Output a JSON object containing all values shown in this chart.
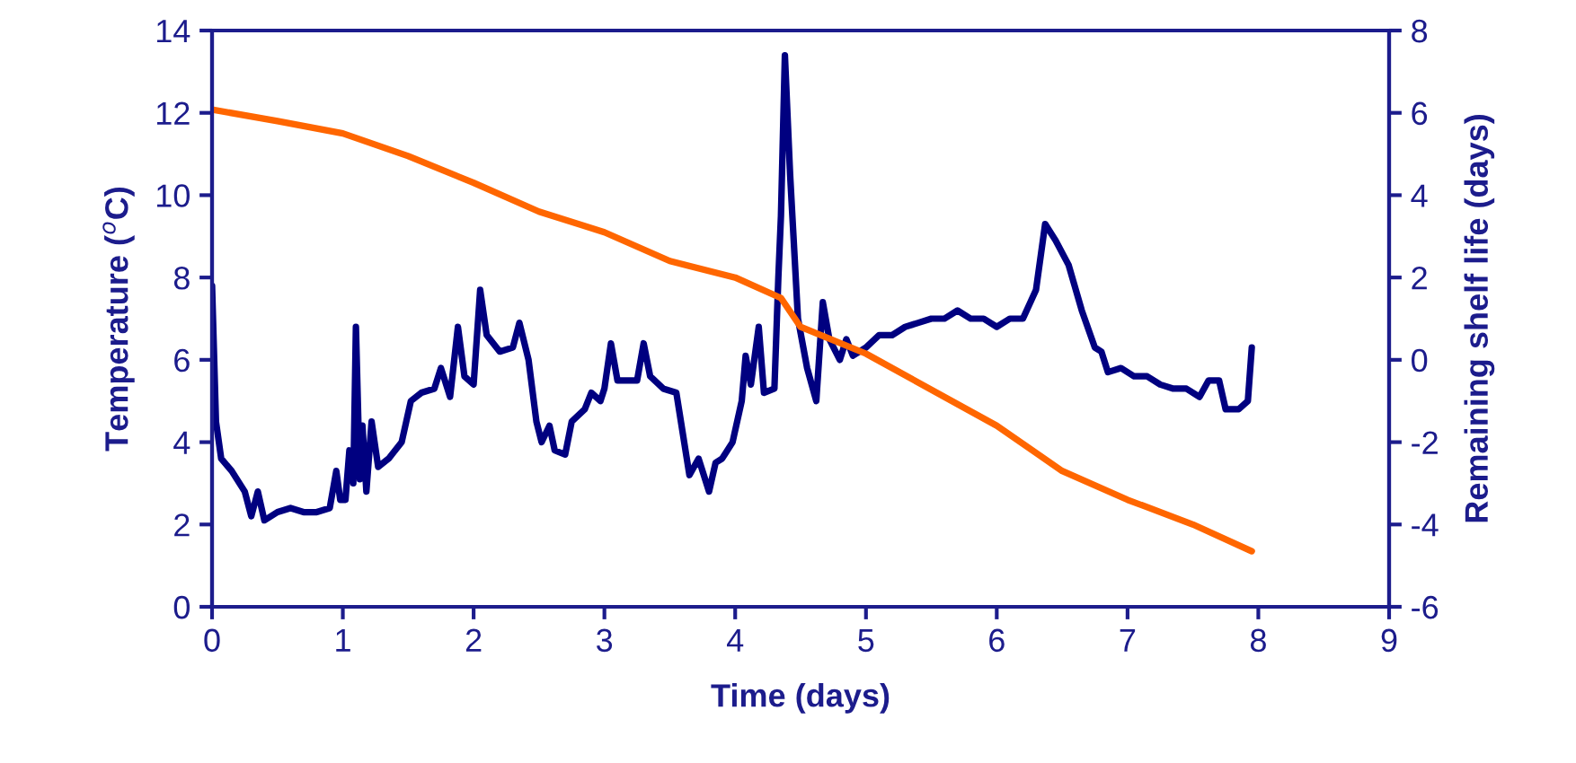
{
  "chart_data": {
    "type": "line",
    "xlabel": "Time (days)",
    "ylabel": "Temperature ($^{o}$C)",
    "y2label": "Remaining shelf life (days)",
    "xlim": [
      0,
      9
    ],
    "xticks": [
      0,
      1,
      2,
      3,
      4,
      5,
      6,
      7,
      8,
      9
    ],
    "ylim": [
      0,
      14
    ],
    "yticks": [
      0,
      2,
      4,
      6,
      8,
      10,
      12,
      14
    ],
    "y2lim": [
      -6,
      8
    ],
    "y2ticks": [
      -6,
      -4,
      -2,
      0,
      2,
      4,
      6,
      8
    ],
    "grid": false,
    "marker": "none",
    "line_style": "solid",
    "series": [
      {
        "color": "#000080",
        "x": [
          0,
          0.03,
          0.07,
          0.15,
          0.25,
          0.3,
          0.35,
          0.4,
          0.5,
          0.6,
          0.7,
          0.8,
          0.9,
          0.95,
          0.98,
          1.02,
          1.05,
          1.08,
          1.1,
          1.13,
          1.15,
          1.18,
          1.22,
          1.27,
          1.35,
          1.45,
          1.52,
          1.6,
          1.7,
          1.75,
          1.82,
          1.88,
          1.93,
          2.0,
          2.05,
          2.1,
          2.2,
          2.3,
          2.35,
          2.42,
          2.48,
          2.52,
          2.58,
          2.62,
          2.7,
          2.75,
          2.85,
          2.9,
          2.97,
          3.0,
          3.05,
          3.1,
          3.15,
          3.25,
          3.3,
          3.35,
          3.45,
          3.55,
          3.6,
          3.65,
          3.72,
          3.8,
          3.85,
          3.9,
          3.98,
          4.05,
          4.08,
          4.12,
          4.18,
          4.22,
          4.3,
          4.33,
          4.35,
          4.38,
          4.42,
          4.48,
          4.55,
          4.62,
          4.67,
          4.72,
          4.8,
          4.85,
          4.9,
          5.0,
          5.1,
          5.2,
          5.3,
          5.4,
          5.5,
          5.6,
          5.7,
          5.8,
          5.9,
          6.0,
          6.1,
          6.2,
          6.3,
          6.37,
          6.45,
          6.55,
          6.65,
          6.75,
          6.8,
          6.85,
          6.95,
          7.05,
          7.15,
          7.25,
          7.35,
          7.45,
          7.55,
          7.62,
          7.7,
          7.75,
          7.85,
          7.92,
          7.95
        ],
        "values": [
          7.8,
          4.5,
          3.6,
          3.3,
          2.8,
          2.2,
          2.8,
          2.1,
          2.3,
          2.4,
          2.3,
          2.3,
          2.4,
          3.3,
          2.6,
          2.6,
          3.8,
          3.0,
          6.8,
          3.1,
          4.4,
          2.8,
          4.5,
          3.4,
          3.6,
          4.0,
          5.0,
          5.2,
          5.3,
          5.8,
          5.1,
          6.8,
          5.6,
          5.4,
          7.7,
          6.6,
          6.2,
          6.3,
          6.9,
          6.0,
          4.5,
          4.0,
          4.4,
          3.8,
          3.7,
          4.5,
          4.8,
          5.2,
          5.0,
          5.3,
          6.4,
          5.5,
          5.5,
          5.5,
          6.4,
          5.6,
          5.3,
          5.2,
          4.2,
          3.2,
          3.6,
          2.8,
          3.5,
          3.6,
          4.0,
          5.0,
          6.1,
          5.4,
          6.8,
          5.2,
          5.3,
          8.0,
          9.5,
          13.4,
          10.5,
          7.0,
          5.8,
          5.0,
          7.4,
          6.5,
          6.0,
          6.5,
          6.1,
          6.3,
          6.6,
          6.6,
          6.8,
          6.9,
          7.0,
          7.0,
          7.2,
          7.0,
          7.0,
          6.8,
          7.0,
          7.0,
          7.7,
          9.3,
          8.9,
          8.3,
          7.2,
          6.3,
          6.2,
          5.7,
          5.8,
          5.6,
          5.6,
          5.4,
          5.3,
          5.3,
          5.1,
          5.5,
          5.5,
          4.8,
          4.8,
          5.0,
          6.3
        ]
      },
      {
        "color": "#ff6600",
        "axis": "y2",
        "x": [
          0,
          0.5,
          1,
          1.5,
          2,
          2.5,
          3,
          3.5,
          4,
          4.35,
          4.5,
          5,
          6,
          6.5,
          7,
          7.5,
          7.95
        ],
        "values": [
          6.08,
          5.8,
          5.5,
          4.95,
          4.3,
          3.6,
          3.1,
          2.4,
          2.0,
          1.5,
          0.8,
          0.15,
          -1.6,
          -2.7,
          -3.4,
          -4.0,
          -4.65
        ]
      }
    ]
  }
}
